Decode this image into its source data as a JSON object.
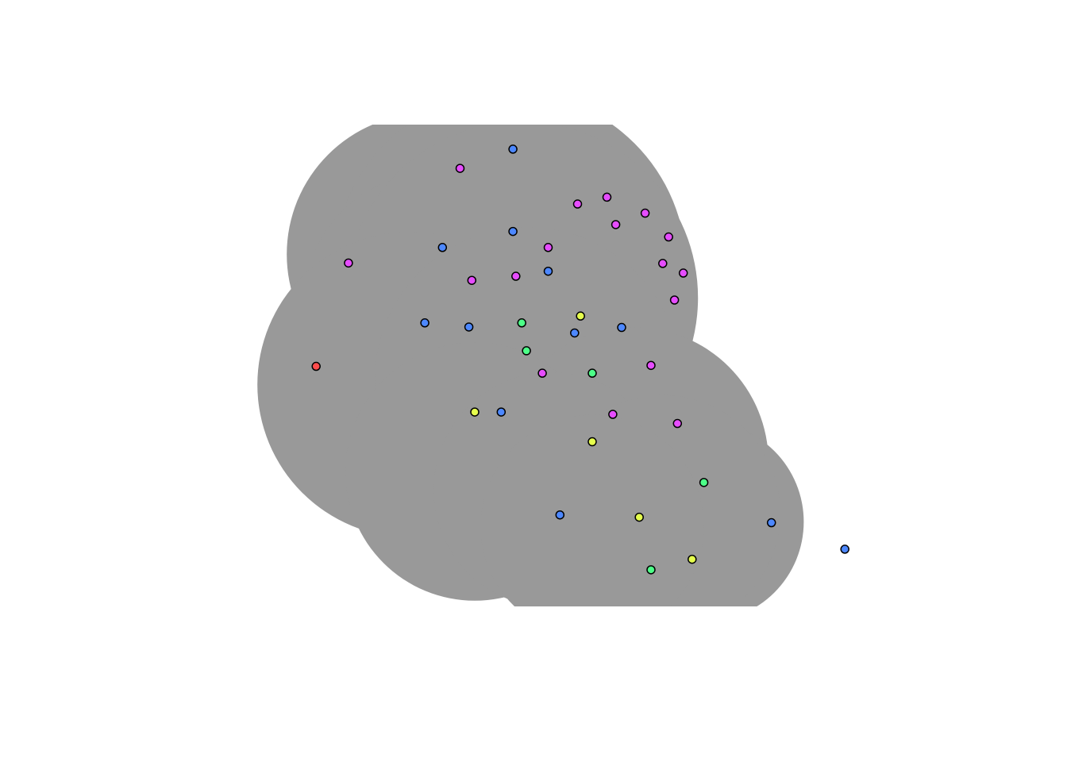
{
  "colors": {
    "background": "#ffffff",
    "region_fill": "#999999",
    "point_stroke": "#000000",
    "red": "#ff4d4d",
    "yellow": "#e6ff4d",
    "green": "#4dff88",
    "blue": "#4d88ff",
    "magenta": "#e64dff"
  },
  "chart_data": {
    "type": "scatter",
    "title": "",
    "xlabel": "",
    "ylabel": "",
    "axes_visible": false,
    "grid": false,
    "legend": "none",
    "xlim": [
      0,
      100
    ],
    "ylim": [
      0,
      100
    ],
    "region": {
      "description_color": "region_fill",
      "circles": [
        {
          "cx": 32,
          "cy": 72.5,
          "r": 24
        },
        {
          "cx": 46,
          "cy": 69.5,
          "r": 30
        },
        {
          "cx": 33,
          "cy": 62.0,
          "r": 22
        },
        {
          "cx": 48,
          "cy": 63.0,
          "r": 30
        },
        {
          "cx": 29,
          "cy": 44.0,
          "r": 26
        },
        {
          "cx": 49,
          "cy": 45.0,
          "r": 26
        },
        {
          "cx": 67,
          "cy": 27.0,
          "r": 23
        },
        {
          "cx": 40,
          "cy": 25.0,
          "r": 22
        },
        {
          "cx": 53,
          "cy": 21.0,
          "r": 20
        },
        {
          "cx": 79,
          "cy": 14.0,
          "r": 17
        },
        {
          "cx": 72,
          "cy": 16.0,
          "r": 20
        },
        {
          "cx": 60,
          "cy": 13.0,
          "r": 19
        }
      ],
      "clip_ylim": [
        0,
        100
      ]
    },
    "series": [
      {
        "color": "red",
        "points": [
          [
            13.0,
            48.0
          ]
        ]
      },
      {
        "color": "yellow",
        "points": [
          [
            40.0,
            38.0
          ],
          [
            58.0,
            59.0
          ],
          [
            60.0,
            31.5
          ],
          [
            68.0,
            15.0
          ],
          [
            77.0,
            5.8
          ]
        ]
      },
      {
        "color": "green",
        "points": [
          [
            48.0,
            57.5
          ],
          [
            48.8,
            51.4
          ],
          [
            60.0,
            46.5
          ],
          [
            79.0,
            22.6
          ],
          [
            70.0,
            3.5
          ]
        ]
      },
      {
        "color": "blue",
        "points": [
          [
            46.5,
            95.5
          ],
          [
            46.5,
            77.5
          ],
          [
            34.5,
            74.0
          ],
          [
            52.5,
            68.8
          ],
          [
            31.5,
            57.5
          ],
          [
            39.0,
            56.6
          ],
          [
            57.0,
            55.3
          ],
          [
            65.0,
            56.5
          ],
          [
            44.5,
            38.0
          ],
          [
            54.5,
            15.5
          ],
          [
            90.5,
            13.8
          ],
          [
            103.0,
            8.0
          ]
        ]
      },
      {
        "color": "magenta",
        "points": [
          [
            37.5,
            91.3
          ],
          [
            57.5,
            83.5
          ],
          [
            62.5,
            85.0
          ],
          [
            69.0,
            81.5
          ],
          [
            64.0,
            79.0
          ],
          [
            73.0,
            76.3
          ],
          [
            52.5,
            74.0
          ],
          [
            72.0,
            70.5
          ],
          [
            75.5,
            68.4
          ],
          [
            18.5,
            70.6
          ],
          [
            39.5,
            66.8
          ],
          [
            47.0,
            67.7
          ],
          [
            74.0,
            62.5
          ],
          [
            51.5,
            46.5
          ],
          [
            70.0,
            48.2
          ],
          [
            63.5,
            37.5
          ],
          [
            74.5,
            35.5
          ]
        ]
      }
    ]
  }
}
